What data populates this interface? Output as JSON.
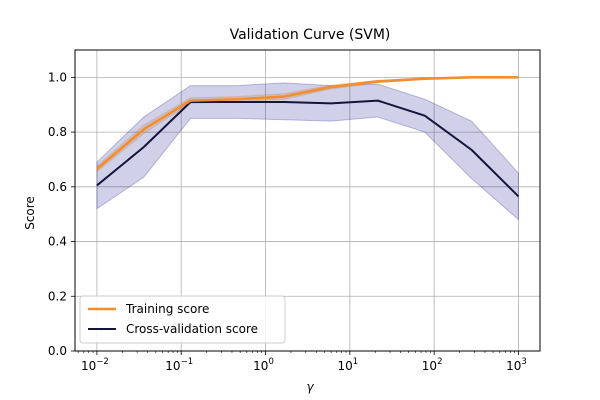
{
  "chart_data": {
    "type": "line",
    "title": "Validation Curve (SVM)",
    "xlabel": "γ",
    "ylabel": "Score",
    "x_scale": "log",
    "xlim": [
      0.0055,
      1800
    ],
    "ylim": [
      0.0,
      1.1
    ],
    "x": [
      0.01,
      0.0359,
      0.129,
      0.464,
      1.67,
      5.99,
      21.5,
      77.4,
      278,
      1000
    ],
    "xticks": [
      {
        "value": 0.01,
        "base": "10",
        "exp": "−2"
      },
      {
        "value": 0.1,
        "base": "10",
        "exp": "−1"
      },
      {
        "value": 1,
        "base": "10",
        "exp": "0"
      },
      {
        "value": 10,
        "base": "10",
        "exp": "1"
      },
      {
        "value": 100,
        "base": "10",
        "exp": "2"
      },
      {
        "value": 1000,
        "base": "10",
        "exp": "3"
      }
    ],
    "yticks": [
      "0.0",
      "0.2",
      "0.4",
      "0.6",
      "0.8",
      "1.0"
    ],
    "grid": true,
    "legend_position": "lower-left",
    "series": [
      {
        "name": "Training score",
        "color": "#f28e2b",
        "values": [
          0.665,
          0.81,
          0.915,
          0.92,
          0.93,
          0.965,
          0.985,
          0.995,
          1.0,
          1.0
        ],
        "band_lower": [
          0.655,
          0.795,
          0.905,
          0.91,
          0.92,
          0.958,
          0.98,
          0.993,
          0.999,
          0.999
        ],
        "band_upper": [
          0.675,
          0.825,
          0.925,
          0.93,
          0.94,
          0.972,
          0.99,
          0.997,
          1.0,
          1.0
        ],
        "band_color": "#f28e2b"
      },
      {
        "name": "Cross-validation score",
        "color": "#14143c",
        "values": [
          0.605,
          0.745,
          0.91,
          0.91,
          0.91,
          0.905,
          0.915,
          0.86,
          0.735,
          0.565
        ],
        "band_lower": [
          0.52,
          0.635,
          0.85,
          0.85,
          0.845,
          0.84,
          0.855,
          0.8,
          0.63,
          0.48
        ],
        "band_upper": [
          0.69,
          0.855,
          0.97,
          0.97,
          0.98,
          0.97,
          0.975,
          0.92,
          0.84,
          0.65
        ],
        "band_color": "#14148c"
      }
    ]
  }
}
